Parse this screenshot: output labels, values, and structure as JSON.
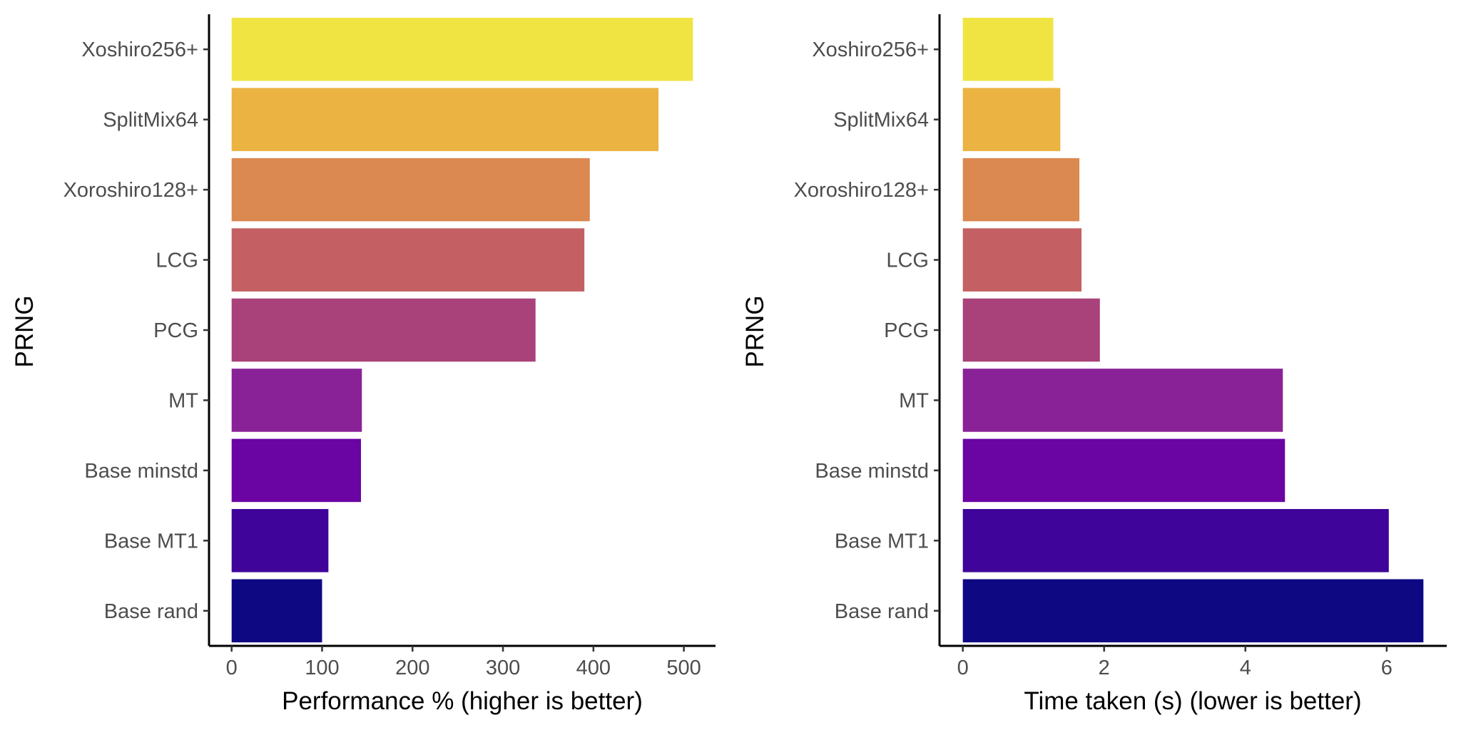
{
  "chart_data": [
    {
      "type": "bar",
      "orientation": "horizontal",
      "title": "",
      "xlabel": "Performance % (higher is better)",
      "ylabel": "PRNG",
      "categories": [
        "Xoshiro256+",
        "SplitMix64",
        "Xoroshiro128+",
        "LCG",
        "PCG",
        "MT",
        "Base minstd",
        "Base MT1",
        "Base rand"
      ],
      "values": [
        510,
        472,
        396,
        390,
        336,
        144,
        143,
        107,
        100
      ],
      "colors": [
        "#F0E442",
        "#EAB342",
        "#DB8851",
        "#C46063",
        "#A9417A",
        "#8A2297",
        "#6A04A3",
        "#3F049A",
        "#0E0883"
      ],
      "xlim": [
        -25,
        535
      ],
      "xticks": [
        0,
        100,
        200,
        300,
        400,
        500
      ],
      "xtick_labels": [
        "0",
        "100",
        "200",
        "300",
        "400",
        "500"
      ],
      "grid": false,
      "legend": "none"
    },
    {
      "type": "bar",
      "orientation": "horizontal",
      "title": "",
      "xlabel": "Time taken (s) (lower is better)",
      "ylabel": "PRNG",
      "categories": [
        "Xoshiro256+",
        "SplitMix64",
        "Xoroshiro128+",
        "LCG",
        "PCG",
        "MT",
        "Base minstd",
        "Base MT1",
        "Base rand"
      ],
      "values": [
        1.28,
        1.38,
        1.65,
        1.68,
        1.94,
        4.53,
        4.56,
        6.03,
        6.52
      ],
      "colors": [
        "#F0E442",
        "#EAB342",
        "#DB8851",
        "#C46063",
        "#A9417A",
        "#8A2297",
        "#6A04A3",
        "#3F049A",
        "#0E0883"
      ],
      "xlim": [
        -0.33,
        6.85
      ],
      "xticks": [
        0,
        2,
        4,
        6
      ],
      "xtick_labels": [
        "0",
        "2",
        "4",
        "6"
      ],
      "grid": false,
      "legend": "none"
    }
  ]
}
